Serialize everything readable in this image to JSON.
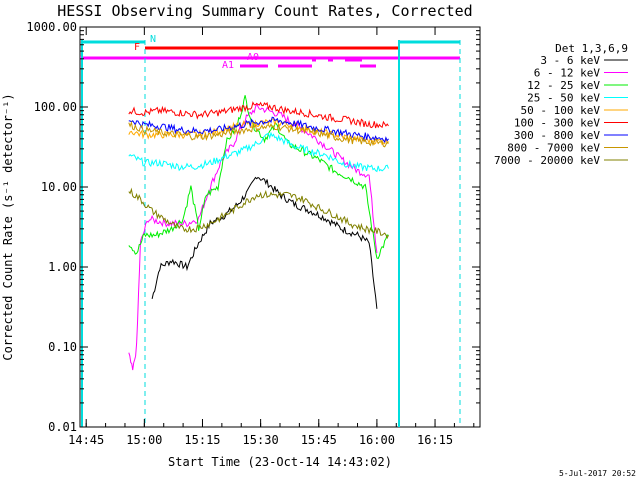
{
  "chart_data": {
    "type": "line",
    "title": "HESSI Observing Summary Count Rates, Corrected",
    "xlabel": "Start Time (23-Oct-14 14:43:02)",
    "ylabel": "Corrected Count Rate (s⁻¹ detector⁻¹)",
    "y_scale": "log",
    "ylim": [
      0.01,
      1000
    ],
    "xlim_minutes": [
      14.4,
      117.6
    ],
    "x_ticks": [
      {
        "minute": 16,
        "label": "14:45"
      },
      {
        "minute": 31,
        "label": "15:00"
      },
      {
        "minute": 46,
        "label": "15:15"
      },
      {
        "minute": 61,
        "label": "15:30"
      },
      {
        "minute": 76,
        "label": "15:45"
      },
      {
        "minute": 91,
        "label": "16:00"
      },
      {
        "minute": 106,
        "label": "16:15"
      }
    ],
    "y_ticks": [
      {
        "value": 0.01,
        "label": "0.01"
      },
      {
        "value": 0.1,
        "label": "0.10"
      },
      {
        "value": 1,
        "label": "1.00"
      },
      {
        "value": 10,
        "label": "10.00"
      },
      {
        "value": 100,
        "label": "100.00"
      },
      {
        "value": 1000,
        "label": "1000.00"
      }
    ],
    "legend_title": "Det 1,3,6,9",
    "legend_position": "outside-right",
    "series": [
      {
        "name": "3 - 6 keV",
        "color": "#000000",
        "points": [
          [
            33,
            0.4
          ],
          [
            35,
            1.0
          ],
          [
            38,
            1.2
          ],
          [
            42,
            1.0
          ],
          [
            45,
            2.0
          ],
          [
            48,
            3.5
          ],
          [
            52,
            4.5
          ],
          [
            55,
            6
          ],
          [
            58,
            9
          ],
          [
            60,
            14
          ],
          [
            63,
            11
          ],
          [
            66,
            8
          ],
          [
            70,
            6
          ],
          [
            74,
            5
          ],
          [
            78,
            4
          ],
          [
            82,
            3.0
          ],
          [
            86,
            2.5
          ],
          [
            89,
            2.0
          ],
          [
            91,
            0.3
          ]
        ]
      },
      {
        "name": "6 - 12 keV",
        "color": "#ff00ff",
        "points": [
          [
            27,
            0.08
          ],
          [
            28,
            0.05
          ],
          [
            29,
            0.1
          ],
          [
            30,
            2.0
          ],
          [
            32,
            4.0
          ],
          [
            37,
            3.5
          ],
          [
            42,
            3.5
          ],
          [
            45,
            4
          ],
          [
            48,
            10
          ],
          [
            51,
            22
          ],
          [
            54,
            35
          ],
          [
            57,
            70
          ],
          [
            60,
            100
          ],
          [
            63,
            90
          ],
          [
            66,
            80
          ],
          [
            70,
            60
          ],
          [
            74,
            45
          ],
          [
            78,
            32
          ],
          [
            82,
            22
          ],
          [
            86,
            16
          ],
          [
            89,
            14
          ],
          [
            91,
            1.5
          ]
        ]
      },
      {
        "name": "12 - 25 keV",
        "color": "#00ee00",
        "points": [
          [
            27,
            2.0
          ],
          [
            29,
            1.5
          ],
          [
            31,
            2.5
          ],
          [
            34,
            2.5
          ],
          [
            38,
            3.0
          ],
          [
            41,
            4.0
          ],
          [
            43,
            10
          ],
          [
            45,
            3.0
          ],
          [
            47,
            8
          ],
          [
            50,
            10
          ],
          [
            52,
            35
          ],
          [
            55,
            60
          ],
          [
            57,
            130
          ],
          [
            59,
            60
          ],
          [
            62,
            40
          ],
          [
            65,
            60
          ],
          [
            68,
            35
          ],
          [
            72,
            28
          ],
          [
            76,
            22
          ],
          [
            80,
            16
          ],
          [
            84,
            13
          ],
          [
            88,
            10
          ],
          [
            91,
            1.3
          ],
          [
            94,
            2.5
          ]
        ]
      },
      {
        "name": "25 - 50 keV",
        "color": "#00ffff",
        "points": [
          [
            27,
            25
          ],
          [
            31,
            20
          ],
          [
            35,
            20
          ],
          [
            40,
            18
          ],
          [
            44,
            18
          ],
          [
            48,
            20
          ],
          [
            52,
            24
          ],
          [
            56,
            28
          ],
          [
            60,
            35
          ],
          [
            63,
            45
          ],
          [
            66,
            40
          ],
          [
            70,
            32
          ],
          [
            74,
            28
          ],
          [
            78,
            25
          ],
          [
            82,
            20
          ],
          [
            86,
            18
          ],
          [
            90,
            17
          ],
          [
            94,
            17
          ]
        ]
      },
      {
        "name": "50 - 100 keV",
        "color": "#ffaa00",
        "points": [
          [
            27,
            50
          ],
          [
            31,
            45
          ],
          [
            35,
            45
          ],
          [
            40,
            45
          ],
          [
            45,
            45
          ],
          [
            50,
            50
          ],
          [
            55,
            58
          ],
          [
            60,
            63
          ],
          [
            65,
            65
          ],
          [
            70,
            58
          ],
          [
            75,
            50
          ],
          [
            80,
            45
          ],
          [
            85,
            40
          ],
          [
            90,
            38
          ],
          [
            94,
            37
          ]
        ]
      },
      {
        "name": "100 - 300 keV",
        "color": "#ff0000",
        "points": [
          [
            27,
            90
          ],
          [
            31,
            85
          ],
          [
            35,
            90
          ],
          [
            40,
            85
          ],
          [
            45,
            80
          ],
          [
            50,
            85
          ],
          [
            55,
            95
          ],
          [
            60,
            105
          ],
          [
            64,
            100
          ],
          [
            68,
            90
          ],
          [
            72,
            85
          ],
          [
            76,
            78
          ],
          [
            80,
            72
          ],
          [
            84,
            68
          ],
          [
            88,
            62
          ],
          [
            92,
            60
          ],
          [
            94,
            58
          ]
        ]
      },
      {
        "name": "300 - 800 keV",
        "color": "#0000ff",
        "points": [
          [
            27,
            70
          ],
          [
            31,
            60
          ],
          [
            35,
            58
          ],
          [
            40,
            52
          ],
          [
            45,
            50
          ],
          [
            50,
            52
          ],
          [
            55,
            58
          ],
          [
            60,
            65
          ],
          [
            65,
            68
          ],
          [
            70,
            62
          ],
          [
            75,
            55
          ],
          [
            80,
            50
          ],
          [
            85,
            45
          ],
          [
            90,
            42
          ],
          [
            94,
            40
          ]
        ]
      },
      {
        "name": "800 - 7000 keV",
        "color": "#c89600",
        "points": [
          [
            27,
            60
          ],
          [
            31,
            52
          ],
          [
            35,
            48
          ],
          [
            40,
            45
          ],
          [
            45,
            42
          ],
          [
            50,
            45
          ],
          [
            55,
            50
          ],
          [
            60,
            55
          ],
          [
            65,
            57
          ],
          [
            70,
            52
          ],
          [
            75,
            48
          ],
          [
            80,
            42
          ],
          [
            85,
            38
          ],
          [
            90,
            36
          ],
          [
            94,
            35
          ]
        ]
      },
      {
        "name": "7000 - 20000 keV",
        "color": "#808000",
        "points": [
          [
            27,
            9
          ],
          [
            30,
            7
          ],
          [
            33,
            5
          ],
          [
            36,
            4
          ],
          [
            40,
            3
          ],
          [
            44,
            3
          ],
          [
            48,
            3.5
          ],
          [
            52,
            4.5
          ],
          [
            56,
            6
          ],
          [
            60,
            8
          ],
          [
            64,
            8
          ],
          [
            68,
            8
          ],
          [
            72,
            7
          ],
          [
            76,
            5.5
          ],
          [
            80,
            4.5
          ],
          [
            84,
            3.5
          ],
          [
            88,
            3
          ],
          [
            91,
            2.8
          ],
          [
            94,
            2.5
          ]
        ]
      }
    ],
    "annotations": [
      {
        "label": "N",
        "color": "#00dddd"
      },
      {
        "label": "F",
        "color": "#ff0000"
      },
      {
        "label": "A0",
        "color": "#ff00ff"
      },
      {
        "label": "A1",
        "color": "#ff00ff"
      }
    ],
    "footer_date": "5-Jul-2017 20:52"
  }
}
